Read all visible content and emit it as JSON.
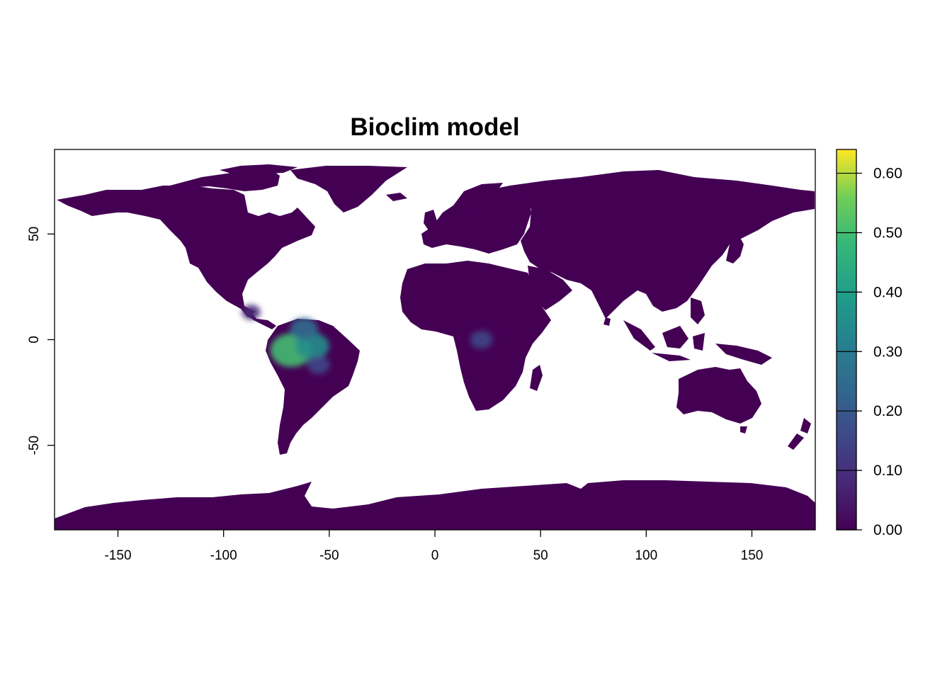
{
  "chart_data": {
    "type": "heatmap",
    "subtype": "raster-map",
    "title": "Bioclim model",
    "xlabel": "",
    "ylabel": "",
    "xlim": [
      -180,
      180
    ],
    "ylim": [
      -90,
      90
    ],
    "x_ticks": [
      -150,
      -100,
      -50,
      0,
      50,
      100,
      150
    ],
    "x_tick_labels": [
      "-150",
      "-100",
      "-50",
      "0",
      "50",
      "100",
      "150"
    ],
    "y_ticks": [
      -50,
      0,
      50
    ],
    "y_tick_labels": [
      "-50",
      "0",
      "50"
    ],
    "colorbar": {
      "palette": "viridis",
      "range": [
        0,
        0.64
      ],
      "ticks": [
        0,
        0.1,
        0.2,
        0.3,
        0.4,
        0.5,
        0.6
      ],
      "tick_labels": [
        "0.00",
        "0.10",
        "0.20",
        "0.30",
        "0.40",
        "0.50",
        "0.60"
      ],
      "low_color": "#440154",
      "high_color": "#FDE725"
    },
    "land_value": 0.0,
    "hotspots": [
      {
        "region": "Amazon basin",
        "lon": -68,
        "lat": -5,
        "value": 0.5
      },
      {
        "region": "Amazon basin",
        "lon": -58,
        "lat": -3,
        "value": 0.35
      },
      {
        "region": "Amazon north",
        "lon": -62,
        "lat": 5,
        "value": 0.25
      },
      {
        "region": "Amazon south",
        "lon": -55,
        "lat": -12,
        "value": 0.15
      },
      {
        "region": "Central Africa",
        "lon": 22,
        "lat": 0,
        "value": 0.15
      },
      {
        "region": "Central America",
        "lon": -87,
        "lat": 13,
        "value": 0.08
      }
    ]
  }
}
